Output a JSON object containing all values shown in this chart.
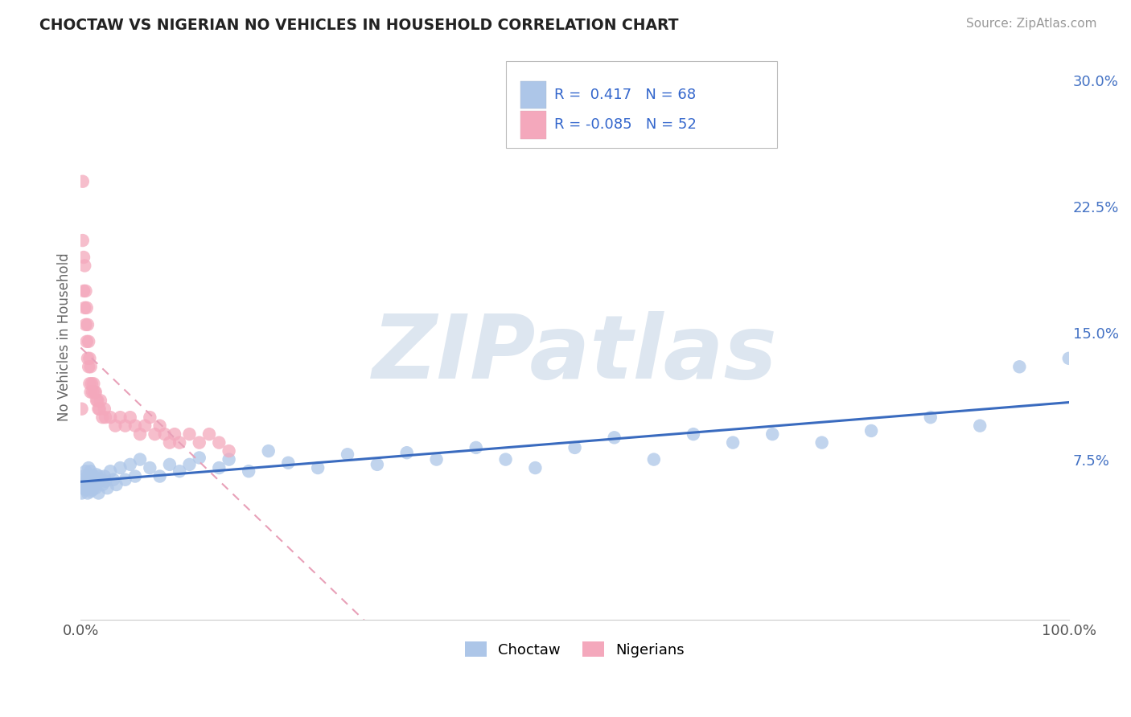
{
  "title": "CHOCTAW VS NIGERIAN NO VEHICLES IN HOUSEHOLD CORRELATION CHART",
  "source": "Source: ZipAtlas.com",
  "ylabel": "No Vehicles in Household",
  "right_yticks": [
    0.0,
    0.075,
    0.15,
    0.225,
    0.3
  ],
  "right_yticklabels": [
    "",
    "7.5%",
    "15.0%",
    "22.5%",
    "30.0%"
  ],
  "xlim": [
    0.0,
    1.0
  ],
  "ylim": [
    -0.02,
    0.315
  ],
  "choctaw_R": 0.417,
  "choctaw_N": 68,
  "nigerian_R": -0.085,
  "nigerian_N": 52,
  "choctaw_color": "#adc6e8",
  "nigerian_color": "#f4a8bc",
  "choctaw_line_color": "#3a6bbf",
  "nigerian_line_color": "#e8a0b8",
  "watermark": "ZIPatlas",
  "watermark_color": "#dde6f0",
  "choctaw_x": [
    0.001,
    0.002,
    0.003,
    0.003,
    0.004,
    0.005,
    0.005,
    0.006,
    0.007,
    0.007,
    0.008,
    0.008,
    0.009,
    0.01,
    0.01,
    0.011,
    0.012,
    0.013,
    0.014,
    0.015,
    0.016,
    0.017,
    0.018,
    0.019,
    0.02,
    0.022,
    0.024,
    0.025,
    0.027,
    0.03,
    0.033,
    0.036,
    0.04,
    0.045,
    0.05,
    0.055,
    0.06,
    0.07,
    0.08,
    0.09,
    0.1,
    0.11,
    0.12,
    0.14,
    0.15,
    0.17,
    0.19,
    0.21,
    0.24,
    0.27,
    0.3,
    0.33,
    0.36,
    0.4,
    0.43,
    0.46,
    0.5,
    0.54,
    0.58,
    0.62,
    0.66,
    0.7,
    0.75,
    0.8,
    0.86,
    0.91,
    0.95,
    1.0
  ],
  "choctaw_y": [
    0.055,
    0.06,
    0.058,
    0.065,
    0.062,
    0.057,
    0.068,
    0.06,
    0.055,
    0.065,
    0.058,
    0.07,
    0.062,
    0.056,
    0.068,
    0.063,
    0.057,
    0.065,
    0.06,
    0.058,
    0.066,
    0.061,
    0.055,
    0.065,
    0.063,
    0.06,
    0.065,
    0.062,
    0.058,
    0.068,
    0.063,
    0.06,
    0.07,
    0.063,
    0.072,
    0.065,
    0.075,
    0.07,
    0.065,
    0.072,
    0.068,
    0.072,
    0.076,
    0.07,
    0.075,
    0.068,
    0.08,
    0.073,
    0.07,
    0.078,
    0.072,
    0.079,
    0.075,
    0.082,
    0.075,
    0.07,
    0.082,
    0.088,
    0.075,
    0.09,
    0.085,
    0.09,
    0.085,
    0.092,
    0.1,
    0.095,
    0.13,
    0.135
  ],
  "nigerian_x": [
    0.001,
    0.002,
    0.002,
    0.003,
    0.003,
    0.004,
    0.004,
    0.005,
    0.005,
    0.006,
    0.006,
    0.007,
    0.007,
    0.008,
    0.008,
    0.009,
    0.009,
    0.01,
    0.01,
    0.011,
    0.012,
    0.013,
    0.014,
    0.015,
    0.016,
    0.017,
    0.018,
    0.019,
    0.02,
    0.022,
    0.024,
    0.025,
    0.03,
    0.035,
    0.04,
    0.045,
    0.05,
    0.055,
    0.06,
    0.065,
    0.07,
    0.075,
    0.08,
    0.085,
    0.09,
    0.095,
    0.1,
    0.11,
    0.12,
    0.13,
    0.14,
    0.15
  ],
  "nigerian_y": [
    0.105,
    0.24,
    0.205,
    0.195,
    0.175,
    0.19,
    0.165,
    0.175,
    0.155,
    0.165,
    0.145,
    0.155,
    0.135,
    0.145,
    0.13,
    0.135,
    0.12,
    0.13,
    0.115,
    0.12,
    0.115,
    0.12,
    0.115,
    0.115,
    0.11,
    0.11,
    0.105,
    0.105,
    0.11,
    0.1,
    0.105,
    0.1,
    0.1,
    0.095,
    0.1,
    0.095,
    0.1,
    0.095,
    0.09,
    0.095,
    0.1,
    0.09,
    0.095,
    0.09,
    0.085,
    0.09,
    0.085,
    0.09,
    0.085,
    0.09,
    0.085,
    0.08
  ]
}
